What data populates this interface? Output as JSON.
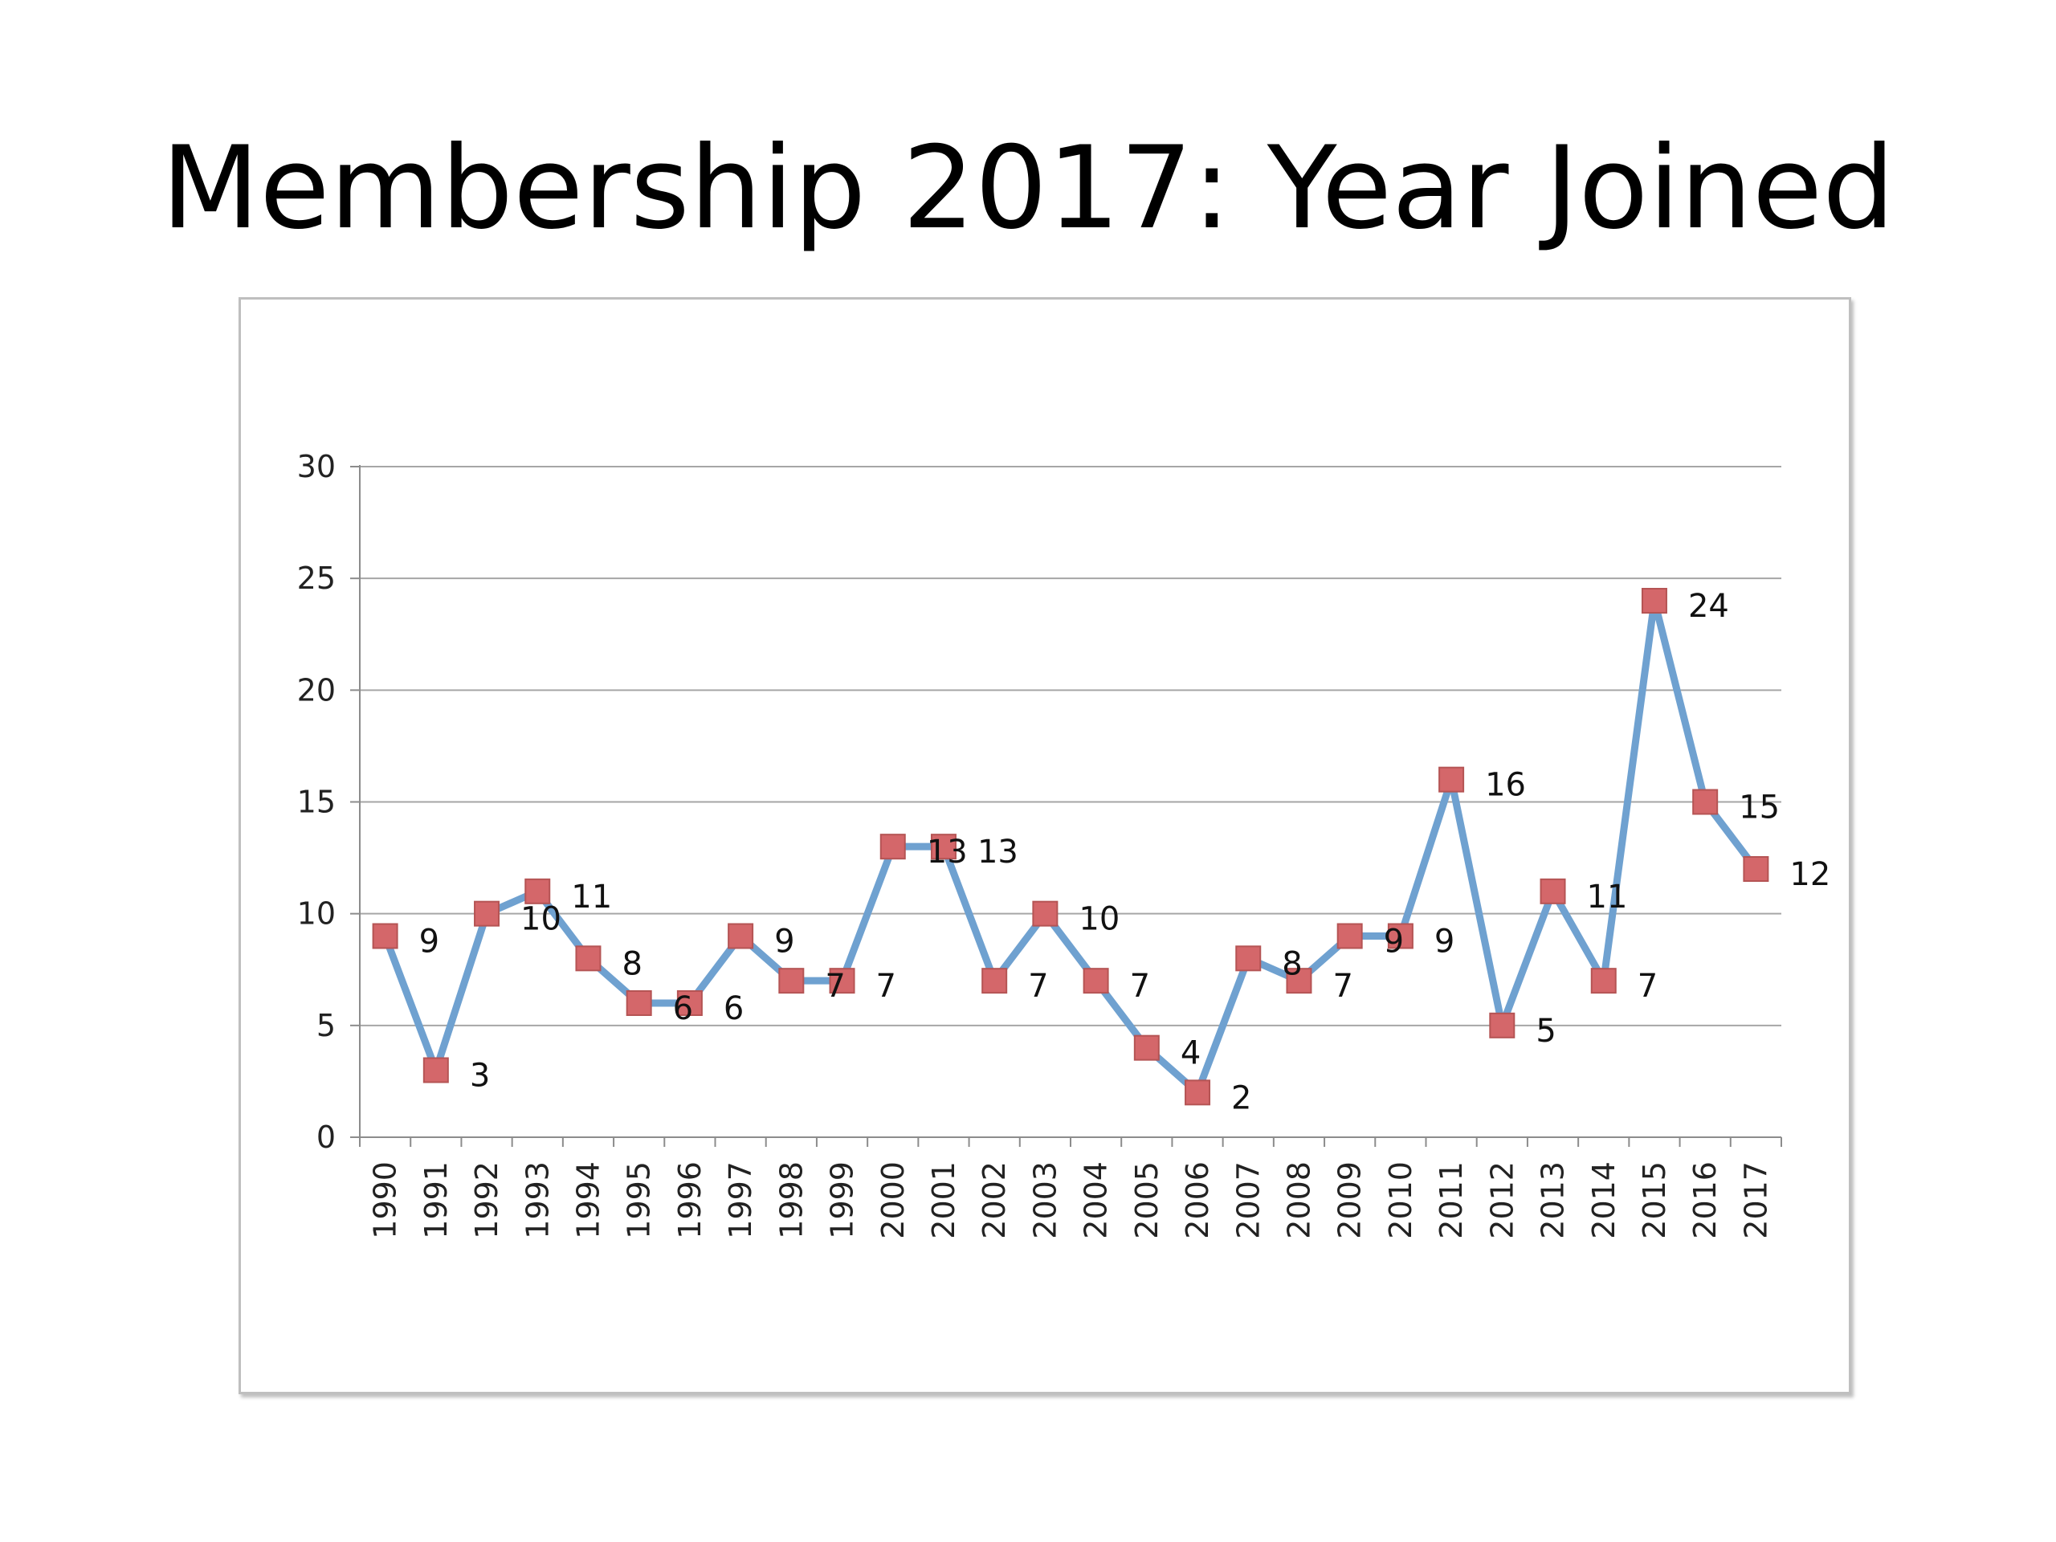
{
  "slide": {
    "title": "Membership 2017: Year Joined"
  },
  "chart_data": {
    "type": "line",
    "title": "",
    "xlabel": "",
    "ylabel": "",
    "categories": [
      "1990",
      "1991",
      "1992",
      "1993",
      "1994",
      "1995",
      "1996",
      "1997",
      "1998",
      "1999",
      "2000",
      "2001",
      "2002",
      "2003",
      "2004",
      "2005",
      "2006",
      "2007",
      "2008",
      "2009",
      "2010",
      "2011",
      "2012",
      "2013",
      "2014",
      "2015",
      "2016",
      "2017"
    ],
    "series": [
      {
        "values": [
          9,
          3,
          10,
          11,
          8,
          6,
          6,
          9,
          7,
          7,
          13,
          13,
          7,
          10,
          7,
          4,
          2,
          8,
          7,
          9,
          9,
          16,
          5,
          11,
          7,
          24,
          15,
          12
        ],
        "line_color": "#6fa1d0",
        "marker": "square",
        "marker_color": "#d4676a",
        "marker_edge_color": "#b55454",
        "data_labels": true
      }
    ],
    "ylim": [
      0,
      30
    ],
    "yticks": [
      0,
      5,
      10,
      15,
      20,
      25,
      30
    ],
    "grid": true,
    "grid_color": "#a6a6a6",
    "legend": "none",
    "x_tick_rotation": "vertical"
  }
}
